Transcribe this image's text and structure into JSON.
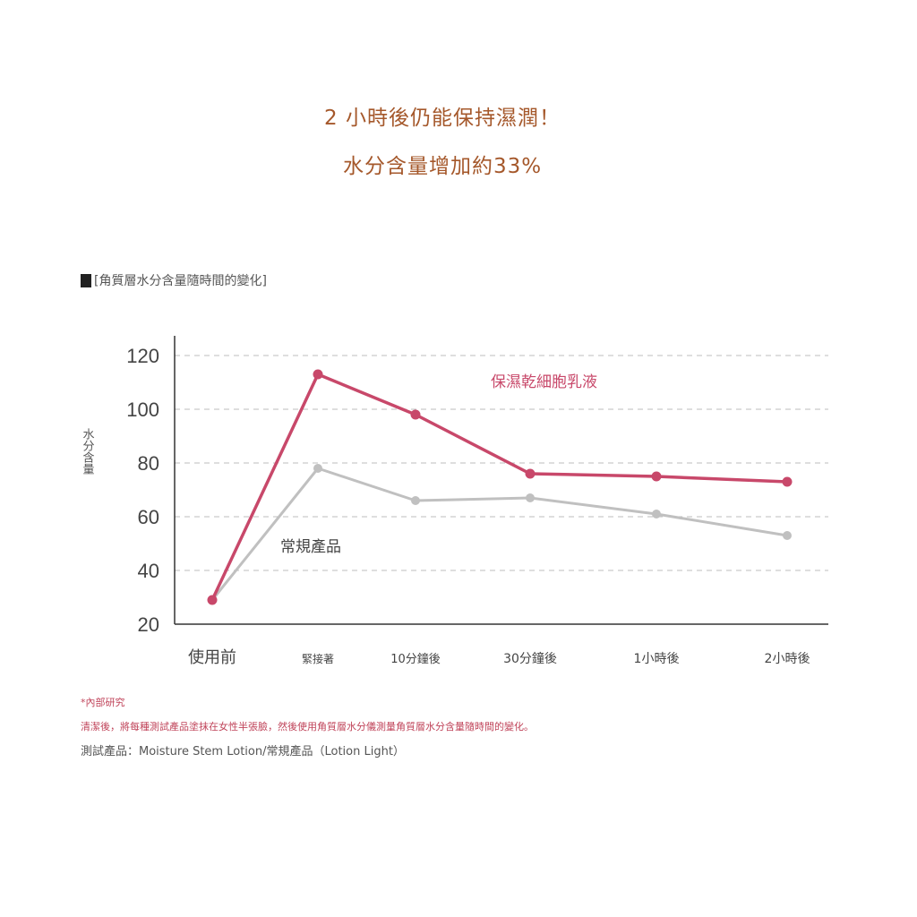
{
  "headline": {
    "line1": "2 小時後仍能保持濕潤！",
    "line2": "水分含量增加約33%"
  },
  "chart_title": "[角質層水分含量隨時間的變化]",
  "chart_data": {
    "type": "line",
    "ylabel": "水分含量",
    "xlabel": "",
    "ylim": [
      20,
      120
    ],
    "yticks": [
      20,
      40,
      60,
      80,
      100,
      120
    ],
    "grid": true,
    "categories": [
      "使用前",
      "緊接著",
      "10分鐘後",
      "30分鐘後",
      "1小時後",
      "2小時後"
    ],
    "series": [
      {
        "name": "保濕乾細胞乳液",
        "color": "#c8486a",
        "values": [
          29,
          113,
          98,
          76,
          75,
          73
        ]
      },
      {
        "name": "常規產品",
        "color": "#c0c0c0",
        "values": [
          29,
          78,
          66,
          67,
          61,
          53
        ]
      }
    ]
  },
  "notes": {
    "source": "*內部研究",
    "method": "清潔後，將每種測試產品塗抹在女性半張臉，然後使用角質層水分儀測量角質層水分含量隨時間的變化。",
    "products": "測試產品：Moisture Stem Lotion/常規產品（Lotion Light）"
  }
}
